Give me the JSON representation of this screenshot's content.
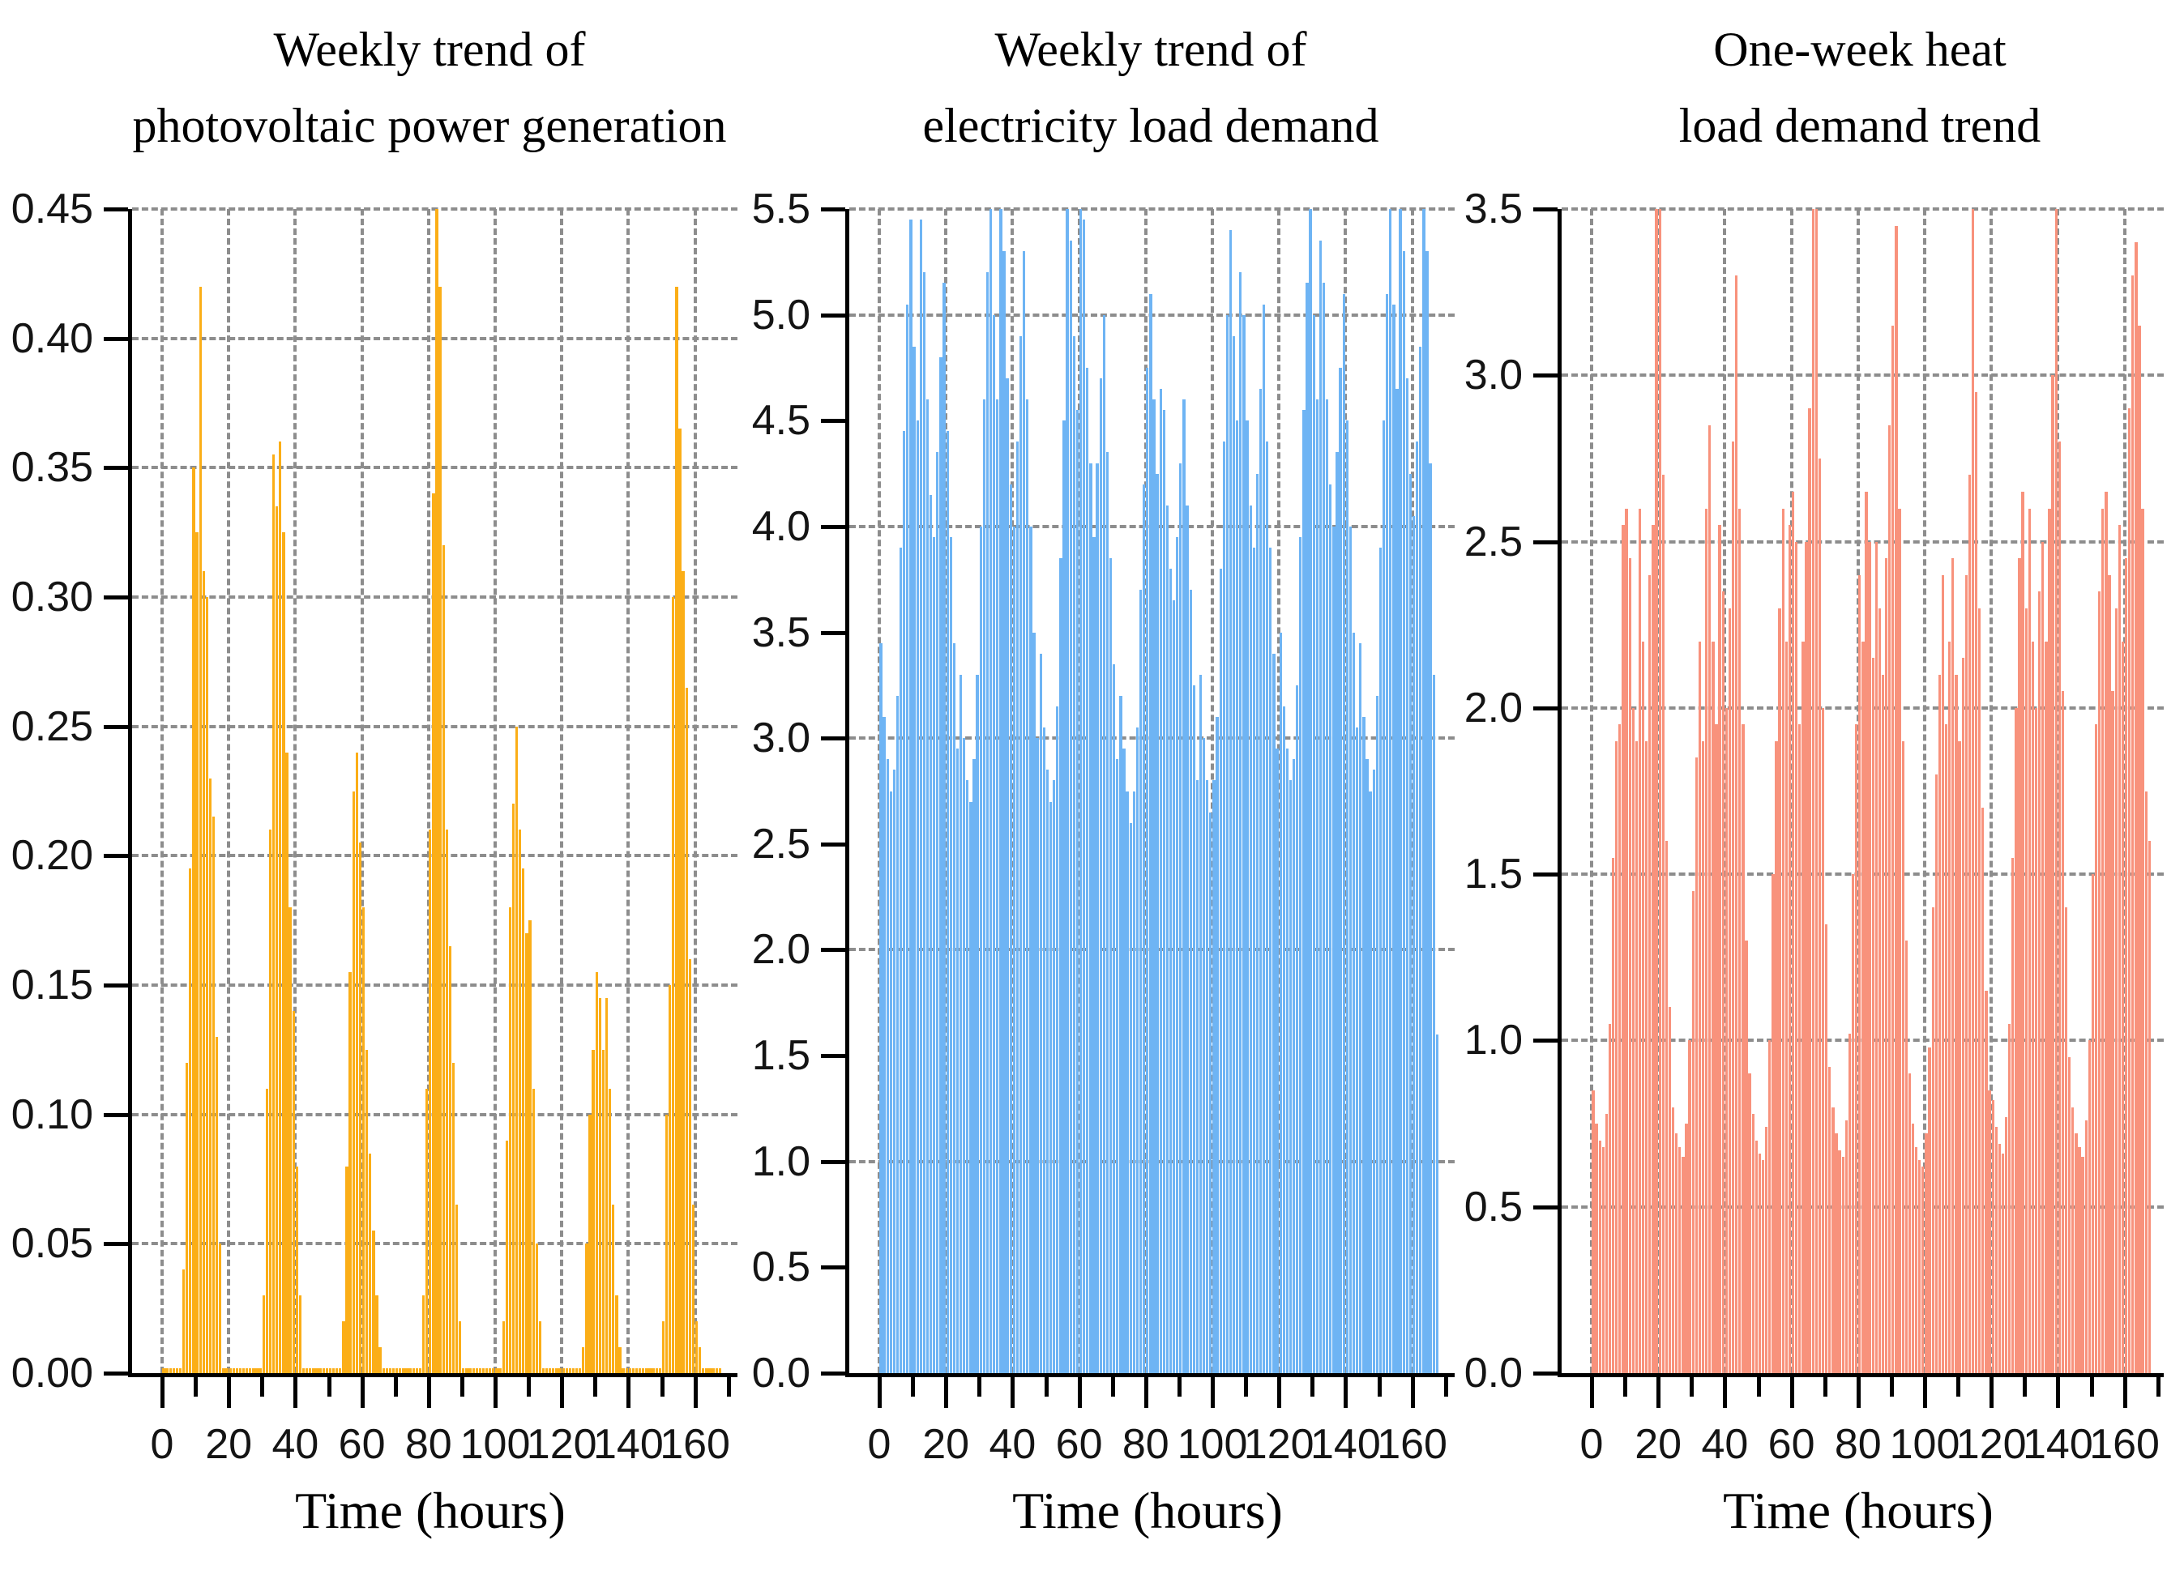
{
  "chart_data": [
    {
      "type": "bar",
      "title_lines": [
        "Weekly trend of",
        "photovoltaic power generation"
      ],
      "xlabel": "Time (hours)",
      "bar_color": "#FBAE17",
      "ylim": [
        0,
        0.45
      ],
      "xlim": [
        0,
        168
      ],
      "grid": "dashed",
      "night_value": 0.002,
      "ytick_labels": [
        "0.00",
        "0.05",
        "0.10",
        "0.15",
        "0.20",
        "0.25",
        "0.30",
        "0.35",
        "0.40",
        "0.45"
      ],
      "grid_values": [
        0.05,
        0.1,
        0.15,
        0.2,
        0.25,
        0.3,
        0.35,
        0.4,
        0.45
      ],
      "xtick_labels": [
        "0",
        "20",
        "40",
        "60",
        "80",
        "100",
        "120",
        "140",
        "160"
      ],
      "xticks_minor": [
        10,
        30,
        50,
        70,
        90,
        110,
        130,
        150,
        170
      ],
      "x": "hour of week",
      "values": [
        0,
        0,
        0,
        0,
        0,
        0,
        0.04,
        0.12,
        0.195,
        0.35,
        0.325,
        0.42,
        0.31,
        0.3,
        0.23,
        0.215,
        0.13,
        0.05,
        0,
        0,
        0,
        0,
        0,
        0,
        0,
        0,
        0,
        0,
        0,
        0,
        0.03,
        0.11,
        0.21,
        0.355,
        0.335,
        0.36,
        0.325,
        0.24,
        0.18,
        0.14,
        0.08,
        0.03,
        0,
        0,
        0,
        0,
        0,
        0,
        0,
        0,
        0,
        0,
        0,
        0,
        0.02,
        0.08,
        0.155,
        0.225,
        0.24,
        0.205,
        0.18,
        0.125,
        0.085,
        0.055,
        0.03,
        0.01,
        0,
        0,
        0,
        0,
        0,
        0,
        0,
        0,
        0,
        0,
        0,
        0,
        0.03,
        0.11,
        0.21,
        0.34,
        0.455,
        0.42,
        0.32,
        0.21,
        0.165,
        0.12,
        0.065,
        0.02,
        0,
        0,
        0,
        0,
        0,
        0,
        0,
        0,
        0,
        0,
        0,
        0,
        0.02,
        0.09,
        0.18,
        0.22,
        0.25,
        0.21,
        0.195,
        0.17,
        0.175,
        0.11,
        0.05,
        0.02,
        0,
        0,
        0,
        0,
        0,
        0,
        0,
        0,
        0,
        0,
        0,
        0,
        0.01,
        0.05,
        0.1,
        0.125,
        0.155,
        0.145,
        0.125,
        0.145,
        0.11,
        0.065,
        0.03,
        0.01,
        0,
        0,
        0,
        0,
        0,
        0,
        0,
        0,
        0,
        0,
        0,
        0,
        0.02,
        0.1,
        0.15,
        0.3,
        0.42,
        0.365,
        0.31,
        0.265,
        0.16,
        0.065,
        0.02,
        0.01,
        0,
        0,
        0,
        0,
        0,
        0
      ]
    },
    {
      "type": "bar",
      "title_lines": [
        "Weekly trend of",
        "electricity load demand"
      ],
      "xlabel": "Time (hours)",
      "bar_color": "#6EB4F4",
      "ylim": [
        0,
        5.5
      ],
      "xlim": [
        0,
        168
      ],
      "grid": "dashed",
      "ytick_labels": [
        "0.0",
        "0.5",
        "1.0",
        "1.5",
        "2.0",
        "2.5",
        "3.0",
        "3.5",
        "4.0",
        "4.5",
        "5.0",
        "5.5"
      ],
      "grid_values": [
        1.0,
        2.0,
        3.0,
        4.0,
        5.0,
        5.5
      ],
      "xtick_labels": [
        "0",
        "20",
        "40",
        "60",
        "80",
        "100",
        "120",
        "140",
        "160"
      ],
      "xticks_minor": [
        10,
        30,
        50,
        70,
        90,
        110,
        130,
        150,
        170
      ],
      "x": "hour of week",
      "values": [
        3.45,
        3.1,
        2.9,
        2.75,
        2.85,
        3.2,
        3.9,
        4.45,
        5.05,
        5.45,
        4.85,
        4.5,
        5.45,
        5.2,
        4.6,
        4.15,
        3.95,
        4.35,
        4.8,
        5.15,
        4.45,
        3.95,
        3.45,
        2.95,
        3.3,
        3.0,
        2.8,
        2.7,
        2.9,
        3.3,
        4.0,
        4.6,
        5.2,
        5.5,
        5.0,
        4.6,
        5.5,
        5.3,
        4.7,
        4.2,
        4.0,
        4.4,
        4.9,
        5.3,
        4.6,
        4.0,
        3.5,
        3.0,
        3.4,
        3.05,
        2.85,
        2.7,
        2.8,
        3.15,
        3.85,
        4.5,
        5.5,
        5.35,
        4.9,
        4.55,
        5.5,
        5.45,
        4.75,
        4.3,
        3.95,
        4.3,
        4.7,
        5.0,
        4.35,
        3.85,
        3.35,
        2.9,
        3.2,
        2.95,
        2.75,
        2.6,
        2.75,
        3.05,
        3.7,
        4.2,
        4.75,
        5.1,
        4.6,
        4.25,
        4.65,
        4.55,
        4.1,
        3.8,
        3.65,
        3.95,
        4.3,
        4.6,
        4.1,
        3.7,
        3.25,
        2.8,
        3.3,
        3.0,
        2.8,
        2.65,
        2.8,
        3.1,
        3.8,
        4.4,
        5.0,
        5.4,
        4.9,
        4.5,
        5.2,
        5.0,
        4.5,
        4.1,
        3.9,
        4.25,
        4.65,
        5.05,
        4.4,
        3.9,
        3.4,
        2.95,
        3.5,
        3.15,
        2.95,
        2.8,
        2.9,
        3.25,
        3.95,
        4.55,
        5.15,
        5.5,
        5.0,
        4.6,
        5.35,
        5.15,
        4.6,
        4.2,
        4.0,
        4.35,
        4.75,
        5.1,
        4.5,
        4.0,
        3.5,
        3.05,
        3.45,
        3.1,
        2.9,
        2.75,
        2.85,
        3.2,
        3.9,
        4.5,
        5.1,
        5.5,
        5.05,
        4.65,
        5.5,
        5.3,
        4.7,
        4.25,
        4.05,
        4.4,
        4.85,
        5.5,
        5.3,
        4.3,
        3.3,
        1.6
      ]
    },
    {
      "type": "bar",
      "title_lines": [
        "One-week heat",
        "load demand trend"
      ],
      "xlabel": "Time (hours)",
      "bar_color": "#F8927C",
      "ylim": [
        0,
        3.5
      ],
      "xlim": [
        0,
        168
      ],
      "grid": "dashed",
      "ytick_labels": [
        "0.0",
        "0.5",
        "1.0",
        "1.5",
        "2.0",
        "2.5",
        "3.0",
        "3.5"
      ],
      "grid_values": [
        0.5,
        1.0,
        1.5,
        2.0,
        2.5,
        3.0,
        3.5
      ],
      "xtick_labels": [
        "0",
        "20",
        "40",
        "60",
        "80",
        "100",
        "120",
        "140",
        "160"
      ],
      "xticks_minor": [
        10,
        30,
        50,
        70,
        90,
        110,
        130,
        150,
        170
      ],
      "x": "hour of week",
      "values": [
        0.85,
        0.75,
        0.7,
        0.68,
        0.78,
        1.05,
        1.55,
        1.9,
        1.95,
        2.55,
        2.6,
        2.45,
        2.0,
        1.9,
        2.6,
        2.2,
        1.9,
        2.4,
        2.55,
        3.5,
        3.5,
        2.7,
        1.6,
        1.1,
        0.8,
        0.72,
        0.68,
        0.65,
        0.75,
        1.0,
        1.45,
        1.85,
        2.2,
        1.9,
        2.6,
        2.85,
        2.2,
        1.95,
        2.55,
        2.35,
        2.0,
        2.3,
        2.8,
        3.3,
        2.6,
        1.95,
        1.3,
        0.9,
        0.78,
        0.7,
        0.66,
        0.64,
        0.74,
        1.0,
        1.5,
        1.9,
        2.3,
        2.6,
        2.2,
        2.55,
        2.65,
        2.5,
        1.95,
        2.2,
        2.5,
        2.9,
        3.5,
        3.5,
        2.75,
        2.0,
        1.35,
        0.92,
        0.8,
        0.72,
        0.67,
        0.65,
        0.76,
        1.02,
        1.5,
        1.95,
        2.4,
        2.2,
        2.65,
        2.5,
        2.15,
        2.5,
        2.3,
        2.1,
        2.45,
        2.85,
        3.15,
        3.45,
        2.6,
        1.9,
        1.3,
        0.9,
        0.75,
        0.68,
        0.64,
        0.62,
        0.72,
        0.98,
        1.4,
        1.8,
        2.1,
        2.4,
        1.95,
        2.2,
        2.45,
        2.1,
        1.9,
        2.15,
        2.4,
        2.7,
        3.5,
        2.95,
        2.3,
        1.7,
        1.15,
        0.85,
        0.82,
        0.74,
        0.69,
        0.66,
        0.77,
        1.05,
        1.55,
        2.0,
        2.45,
        2.65,
        2.3,
        2.6,
        2.2,
        2.0,
        2.35,
        2.5,
        2.2,
        2.6,
        3.0,
        3.5,
        2.8,
        2.05,
        1.4,
        0.95,
        0.8,
        0.72,
        0.68,
        0.65,
        0.76,
        1.0,
        1.5,
        1.95,
        2.35,
        2.6,
        2.65,
        2.4,
        2.05,
        2.3,
        2.55,
        2.2,
        2.45,
        2.9,
        3.3,
        3.4,
        3.15,
        2.6,
        1.75,
        1.6
      ]
    }
  ],
  "colors": {
    "pv_bar": "#FBAE17",
    "electricity_bar": "#6EB4F4",
    "heat_bar": "#F8927C",
    "grid": "#8d8d8d",
    "axis": "#000000",
    "text": "#141414"
  }
}
